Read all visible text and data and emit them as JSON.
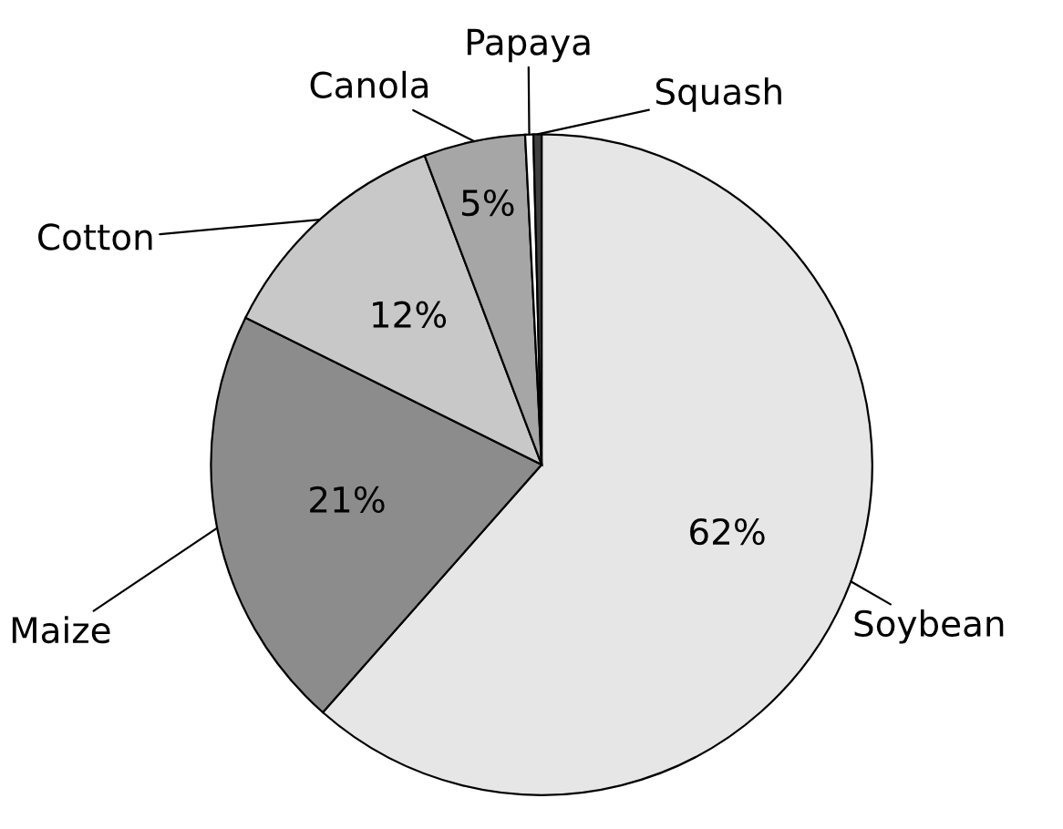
{
  "chart_data": {
    "type": "pie",
    "categories": [
      "Soybean",
      "Maize",
      "Cotton",
      "Canola",
      "Papaya",
      "Squash"
    ],
    "values": [
      62,
      21,
      12,
      5,
      0.4,
      0.4
    ],
    "colors": [
      "#e6e6e6",
      "#8c8c8c",
      "#c8c8c8",
      "#a6a6a6",
      "#ffffff",
      "#404040"
    ],
    "value_labels": [
      "62%",
      "21%",
      "12%",
      "5%",
      null,
      null
    ]
  }
}
